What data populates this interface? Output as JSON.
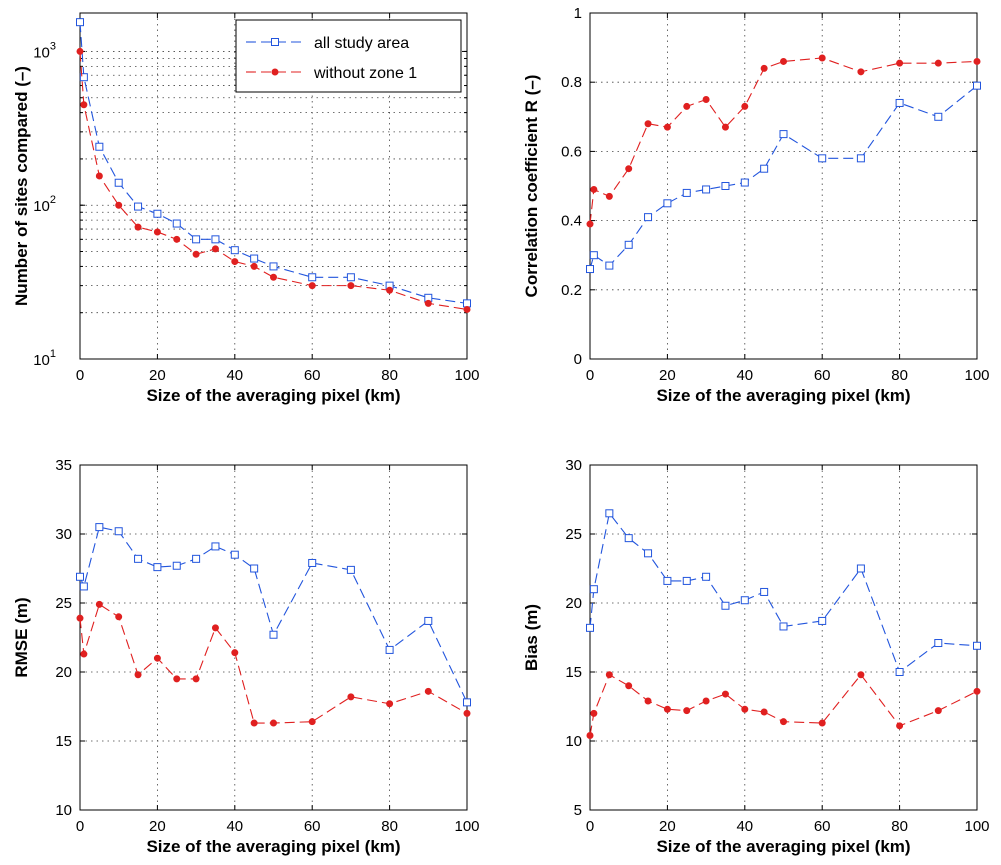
{
  "colors": {
    "series_1": "#2255dd",
    "series_2": "#e02020"
  },
  "legend": {
    "position": "top-right",
    "show_in_panel": 0
  },
  "chart_data": [
    {
      "type": "line",
      "xlabel": "Size of the averaging pixel (km)",
      "ylabel": "Number of sites compared (–)",
      "yscale": "log",
      "xlim": [
        0,
        100
      ],
      "ylim": [
        10,
        1778
      ],
      "xticks": [
        0,
        20,
        40,
        60,
        80,
        100
      ],
      "yticks": [
        10,
        100,
        1000
      ],
      "ytick_labels": [
        {
          "base": "10",
          "exp": "1"
        },
        {
          "base": "10",
          "exp": "2"
        },
        {
          "base": "10",
          "exp": "3"
        }
      ],
      "grid": true,
      "series": [
        {
          "name": "all study area",
          "x": [
            0,
            1,
            5,
            10,
            15,
            20,
            25,
            30,
            35,
            40,
            45,
            50,
            60,
            70,
            80,
            90,
            100
          ],
          "values": [
            1550,
            680,
            240,
            140,
            98,
            88,
            76,
            60,
            60,
            51,
            45,
            40,
            34,
            34,
            30,
            25,
            23
          ]
        },
        {
          "name": "without zone 1",
          "x": [
            0,
            1,
            5,
            10,
            15,
            20,
            25,
            30,
            35,
            40,
            45,
            50,
            60,
            70,
            80,
            90,
            100
          ],
          "values": [
            1000,
            450,
            155,
            100,
            72,
            67,
            60,
            48,
            52,
            43,
            40,
            34,
            30,
            30,
            28,
            23,
            21
          ]
        }
      ]
    },
    {
      "type": "line",
      "xlabel": "Size of the averaging pixel (km)",
      "ylabel": "Correlation coefficient R (–)",
      "xlim": [
        0,
        100
      ],
      "ylim": [
        0,
        1
      ],
      "xticks": [
        0,
        20,
        40,
        60,
        80,
        100
      ],
      "yticks": [
        0,
        0.2,
        0.4,
        0.6,
        0.8,
        1
      ],
      "grid": true,
      "series": [
        {
          "name": "all study area",
          "x": [
            0,
            1,
            5,
            10,
            15,
            20,
            25,
            30,
            35,
            40,
            45,
            50,
            60,
            70,
            80,
            90,
            100
          ],
          "values": [
            0.26,
            0.3,
            0.27,
            0.33,
            0.41,
            0.45,
            0.48,
            0.49,
            0.5,
            0.51,
            0.55,
            0.65,
            0.58,
            0.58,
            0.74,
            0.7,
            0.79
          ]
        },
        {
          "name": "without zone 1",
          "x": [
            0,
            1,
            5,
            10,
            15,
            20,
            25,
            30,
            35,
            40,
            45,
            50,
            60,
            70,
            80,
            90,
            100
          ],
          "values": [
            0.39,
            0.49,
            0.47,
            0.55,
            0.68,
            0.67,
            0.73,
            0.75,
            0.67,
            0.73,
            0.84,
            0.86,
            0.87,
            0.83,
            0.855,
            0.855,
            0.86
          ]
        }
      ]
    },
    {
      "type": "line",
      "xlabel": "Size of the averaging pixel (km)",
      "ylabel": "RMSE (m)",
      "xlim": [
        0,
        100
      ],
      "ylim": [
        10,
        35
      ],
      "xticks": [
        0,
        20,
        40,
        60,
        80,
        100
      ],
      "yticks": [
        10,
        15,
        20,
        25,
        30,
        35
      ],
      "grid": true,
      "series": [
        {
          "name": "all study area",
          "x": [
            0,
            1,
            5,
            10,
            15,
            20,
            25,
            30,
            35,
            40,
            45,
            50,
            60,
            70,
            80,
            90,
            100
          ],
          "values": [
            26.9,
            26.2,
            30.5,
            30.2,
            28.2,
            27.6,
            27.7,
            28.2,
            29.1,
            28.5,
            27.5,
            22.7,
            27.9,
            27.4,
            21.6,
            23.7,
            17.8
          ]
        },
        {
          "name": "without zone 1",
          "x": [
            0,
            1,
            5,
            10,
            15,
            20,
            25,
            30,
            35,
            40,
            45,
            50,
            60,
            70,
            80,
            90,
            100
          ],
          "values": [
            23.9,
            21.3,
            24.9,
            24.0,
            19.8,
            21.0,
            19.5,
            19.5,
            23.2,
            21.4,
            16.3,
            16.3,
            16.4,
            18.2,
            17.7,
            18.6,
            17.0
          ]
        }
      ]
    },
    {
      "type": "line",
      "xlabel": "Size of the averaging pixel (km)",
      "ylabel": "Bias (m)",
      "xlim": [
        0,
        100
      ],
      "ylim": [
        5,
        30
      ],
      "xticks": [
        0,
        20,
        40,
        60,
        80,
        100
      ],
      "yticks": [
        5,
        10,
        15,
        20,
        25,
        30
      ],
      "grid": true,
      "series": [
        {
          "name": "all study area",
          "x": [
            0,
            1,
            5,
            10,
            15,
            20,
            25,
            30,
            35,
            40,
            45,
            50,
            60,
            70,
            80,
            90,
            100
          ],
          "values": [
            18.2,
            21.0,
            26.5,
            24.7,
            23.6,
            21.6,
            21.6,
            21.9,
            19.8,
            20.2,
            20.8,
            18.3,
            18.7,
            22.5,
            15.0,
            17.1,
            16.9
          ]
        },
        {
          "name": "without zone 1",
          "x": [
            0,
            1,
            5,
            10,
            15,
            20,
            25,
            30,
            35,
            40,
            45,
            50,
            60,
            70,
            80,
            90,
            100
          ],
          "values": [
            10.4,
            12.0,
            14.8,
            14.0,
            12.9,
            12.3,
            12.2,
            12.9,
            13.4,
            12.3,
            12.1,
            11.4,
            11.3,
            14.8,
            11.1,
            12.2,
            13.6
          ]
        }
      ]
    }
  ]
}
